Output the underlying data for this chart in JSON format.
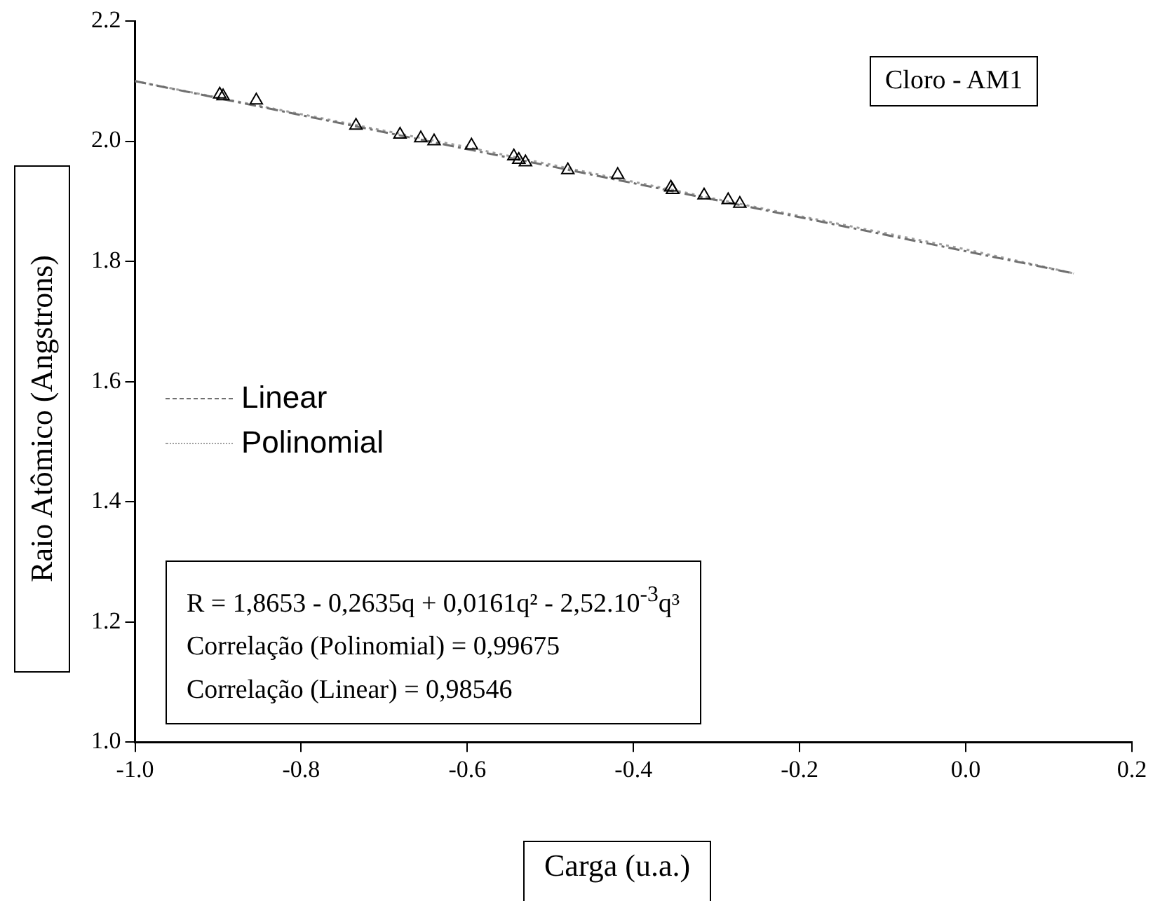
{
  "chart_data": {
    "type": "scatter",
    "title": "Cloro - AM1",
    "xlabel": "Carga (u.a.)",
    "ylabel": "Raio Atômico (Angstrons)",
    "xlim": [
      -1.0,
      0.2
    ],
    "xticks": [
      {
        "value": -1.0,
        "label": "-1.0"
      },
      {
        "value": -0.8,
        "label": "-0.8"
      },
      {
        "value": -0.6,
        "label": "-0.6"
      },
      {
        "value": -0.4,
        "label": "-0.4"
      },
      {
        "value": -0.2,
        "label": "-0.2"
      },
      {
        "value": 0.0,
        "label": "0.0"
      },
      {
        "value": 0.2,
        "label": "0.2"
      }
    ],
    "ylim": [
      1.0,
      2.2
    ],
    "yticks": [
      {
        "value": 1.0,
        "label": "1.0"
      },
      {
        "value": 1.2,
        "label": "1.2"
      },
      {
        "value": 1.4,
        "label": "1.4"
      },
      {
        "value": 1.6,
        "label": "1.6"
      },
      {
        "value": 1.8,
        "label": "1.8"
      },
      {
        "value": 2.0,
        "label": "2.0"
      },
      {
        "value": 2.2,
        "label": "2.2"
      }
    ],
    "grid": false,
    "legend": "left",
    "marker": "triangle",
    "series": [
      {
        "color": "#000000",
        "x": [
          -0.898,
          -0.894,
          -0.854,
          -0.734,
          -0.681,
          -0.656,
          -0.64,
          -0.595,
          -0.544,
          -0.538,
          -0.53,
          -0.479,
          -0.419,
          -0.355,
          -0.353,
          -0.315,
          -0.286,
          -0.272
        ],
        "values": [
          2.078,
          2.075,
          2.068,
          2.026,
          2.011,
          2.005,
          2.0,
          1.993,
          1.975,
          1.969,
          1.965,
          1.952,
          1.944,
          1.923,
          1.919,
          1.91,
          1.902,
          1.896
        ]
      },
      {
        "type": "line",
        "name": "Linear",
        "marker": "none",
        "color": "#707070",
        "line_style": "dashed",
        "x": [
          -1.0,
          0.13
        ],
        "values": [
          2.1,
          1.78
        ]
      },
      {
        "type": "line",
        "name": "Polinomial",
        "marker": "none",
        "color": "#a0a0a0",
        "line_style": "dotted",
        "x": [
          -1.0,
          -0.6,
          -0.27,
          0.0,
          0.13
        ],
        "values": [
          2.1,
          1.99,
          1.895,
          1.82,
          1.78
        ]
      }
    ],
    "annotations": [
      "R = 1,8653 - 0,2635q + 0,0161q² - 2,52.10$^{-3}$q³",
      "Correlação (Polinomial) = 0,99675",
      "Correlação (Linear) = 0,98546"
    ]
  }
}
